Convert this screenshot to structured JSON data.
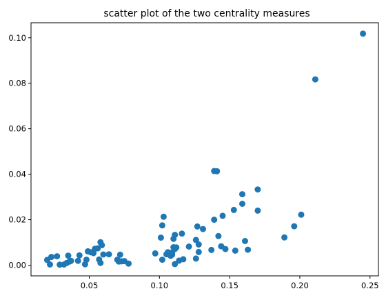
{
  "chart_data": {
    "type": "scatter",
    "title": "scatter plot of the two centrality measures",
    "xlabel": "",
    "ylabel": "",
    "xlim": [
      0.0085,
      0.256
    ],
    "ylim": [
      -0.0047,
      0.1066
    ],
    "xticks": [
      0.05,
      0.1,
      0.15,
      0.2,
      0.25
    ],
    "xtick_labels": [
      "0.05",
      "0.10",
      "0.15",
      "0.20",
      "0.25"
    ],
    "yticks": [
      0.0,
      0.02,
      0.04,
      0.06,
      0.08,
      0.1
    ],
    "ytick_labels": [
      "0.00",
      "0.02",
      "0.04",
      "0.06",
      "0.08",
      "0.10"
    ],
    "grid": false,
    "marker_color": "#1f77b4",
    "series": [
      {
        "points": [
          [
            0.02,
            0.0023
          ],
          [
            0.022,
            0.0003
          ],
          [
            0.023,
            0.0036
          ],
          [
            0.027,
            0.0039
          ],
          [
            0.029,
            0.0002
          ],
          [
            0.032,
            0.0003
          ],
          [
            0.034,
            0.001
          ],
          [
            0.035,
            0.0042
          ],
          [
            0.036,
            0.0016
          ],
          [
            0.037,
            0.0019
          ],
          [
            0.042,
            0.0019
          ],
          [
            0.043,
            0.0043
          ],
          [
            0.047,
            0.0004
          ],
          [
            0.048,
            0.0024
          ],
          [
            0.049,
            0.0061
          ],
          [
            0.051,
            0.0057
          ],
          [
            0.053,
            0.0053
          ],
          [
            0.054,
            0.0072
          ],
          [
            0.056,
            0.0074
          ],
          [
            0.057,
            0.0025
          ],
          [
            0.058,
            0.0101
          ],
          [
            0.059,
            0.0088
          ],
          [
            0.058,
            0.001
          ],
          [
            0.06,
            0.0047
          ],
          [
            0.064,
            0.0048
          ],
          [
            0.07,
            0.0024
          ],
          [
            0.071,
            0.0016
          ],
          [
            0.072,
            0.0046
          ],
          [
            0.073,
            0.0017
          ],
          [
            0.075,
            0.0018
          ],
          [
            0.078,
            0.0007
          ],
          [
            0.097,
            0.0052
          ],
          [
            0.101,
            0.0121
          ],
          [
            0.102,
            0.0175
          ],
          [
            0.102,
            0.0024
          ],
          [
            0.103,
            0.0213
          ],
          [
            0.105,
            0.0048
          ],
          [
            0.106,
            0.0057
          ],
          [
            0.107,
            0.0047
          ],
          [
            0.108,
            0.0041
          ],
          [
            0.109,
            0.0046
          ],
          [
            0.109,
            0.0056
          ],
          [
            0.11,
            0.0079
          ],
          [
            0.11,
            0.0116
          ],
          [
            0.111,
            0.0133
          ],
          [
            0.111,
            0.0071
          ],
          [
            0.111,
            0.0005
          ],
          [
            0.112,
            0.0078
          ],
          [
            0.114,
            0.002
          ],
          [
            0.116,
            0.0139
          ],
          [
            0.117,
            0.0026
          ],
          [
            0.121,
            0.0082
          ],
          [
            0.126,
            0.0111
          ],
          [
            0.126,
            0.0029
          ],
          [
            0.127,
            0.017
          ],
          [
            0.128,
            0.0058
          ],
          [
            0.128,
            0.0091
          ],
          [
            0.131,
            0.0159
          ],
          [
            0.137,
            0.0067
          ],
          [
            0.139,
            0.02
          ],
          [
            0.139,
            0.0414
          ],
          [
            0.141,
            0.0413
          ],
          [
            0.142,
            0.0128
          ],
          [
            0.144,
            0.0083
          ],
          [
            0.145,
            0.0217
          ],
          [
            0.147,
            0.0071
          ],
          [
            0.153,
            0.0243
          ],
          [
            0.154,
            0.0064
          ],
          [
            0.159,
            0.0312
          ],
          [
            0.159,
            0.027
          ],
          [
            0.161,
            0.0106
          ],
          [
            0.163,
            0.0068
          ],
          [
            0.17,
            0.0333
          ],
          [
            0.17,
            0.024
          ],
          [
            0.189,
            0.0122
          ],
          [
            0.196,
            0.0171
          ],
          [
            0.201,
            0.0222
          ],
          [
            0.211,
            0.0817
          ],
          [
            0.245,
            0.1018
          ]
        ]
      }
    ]
  }
}
